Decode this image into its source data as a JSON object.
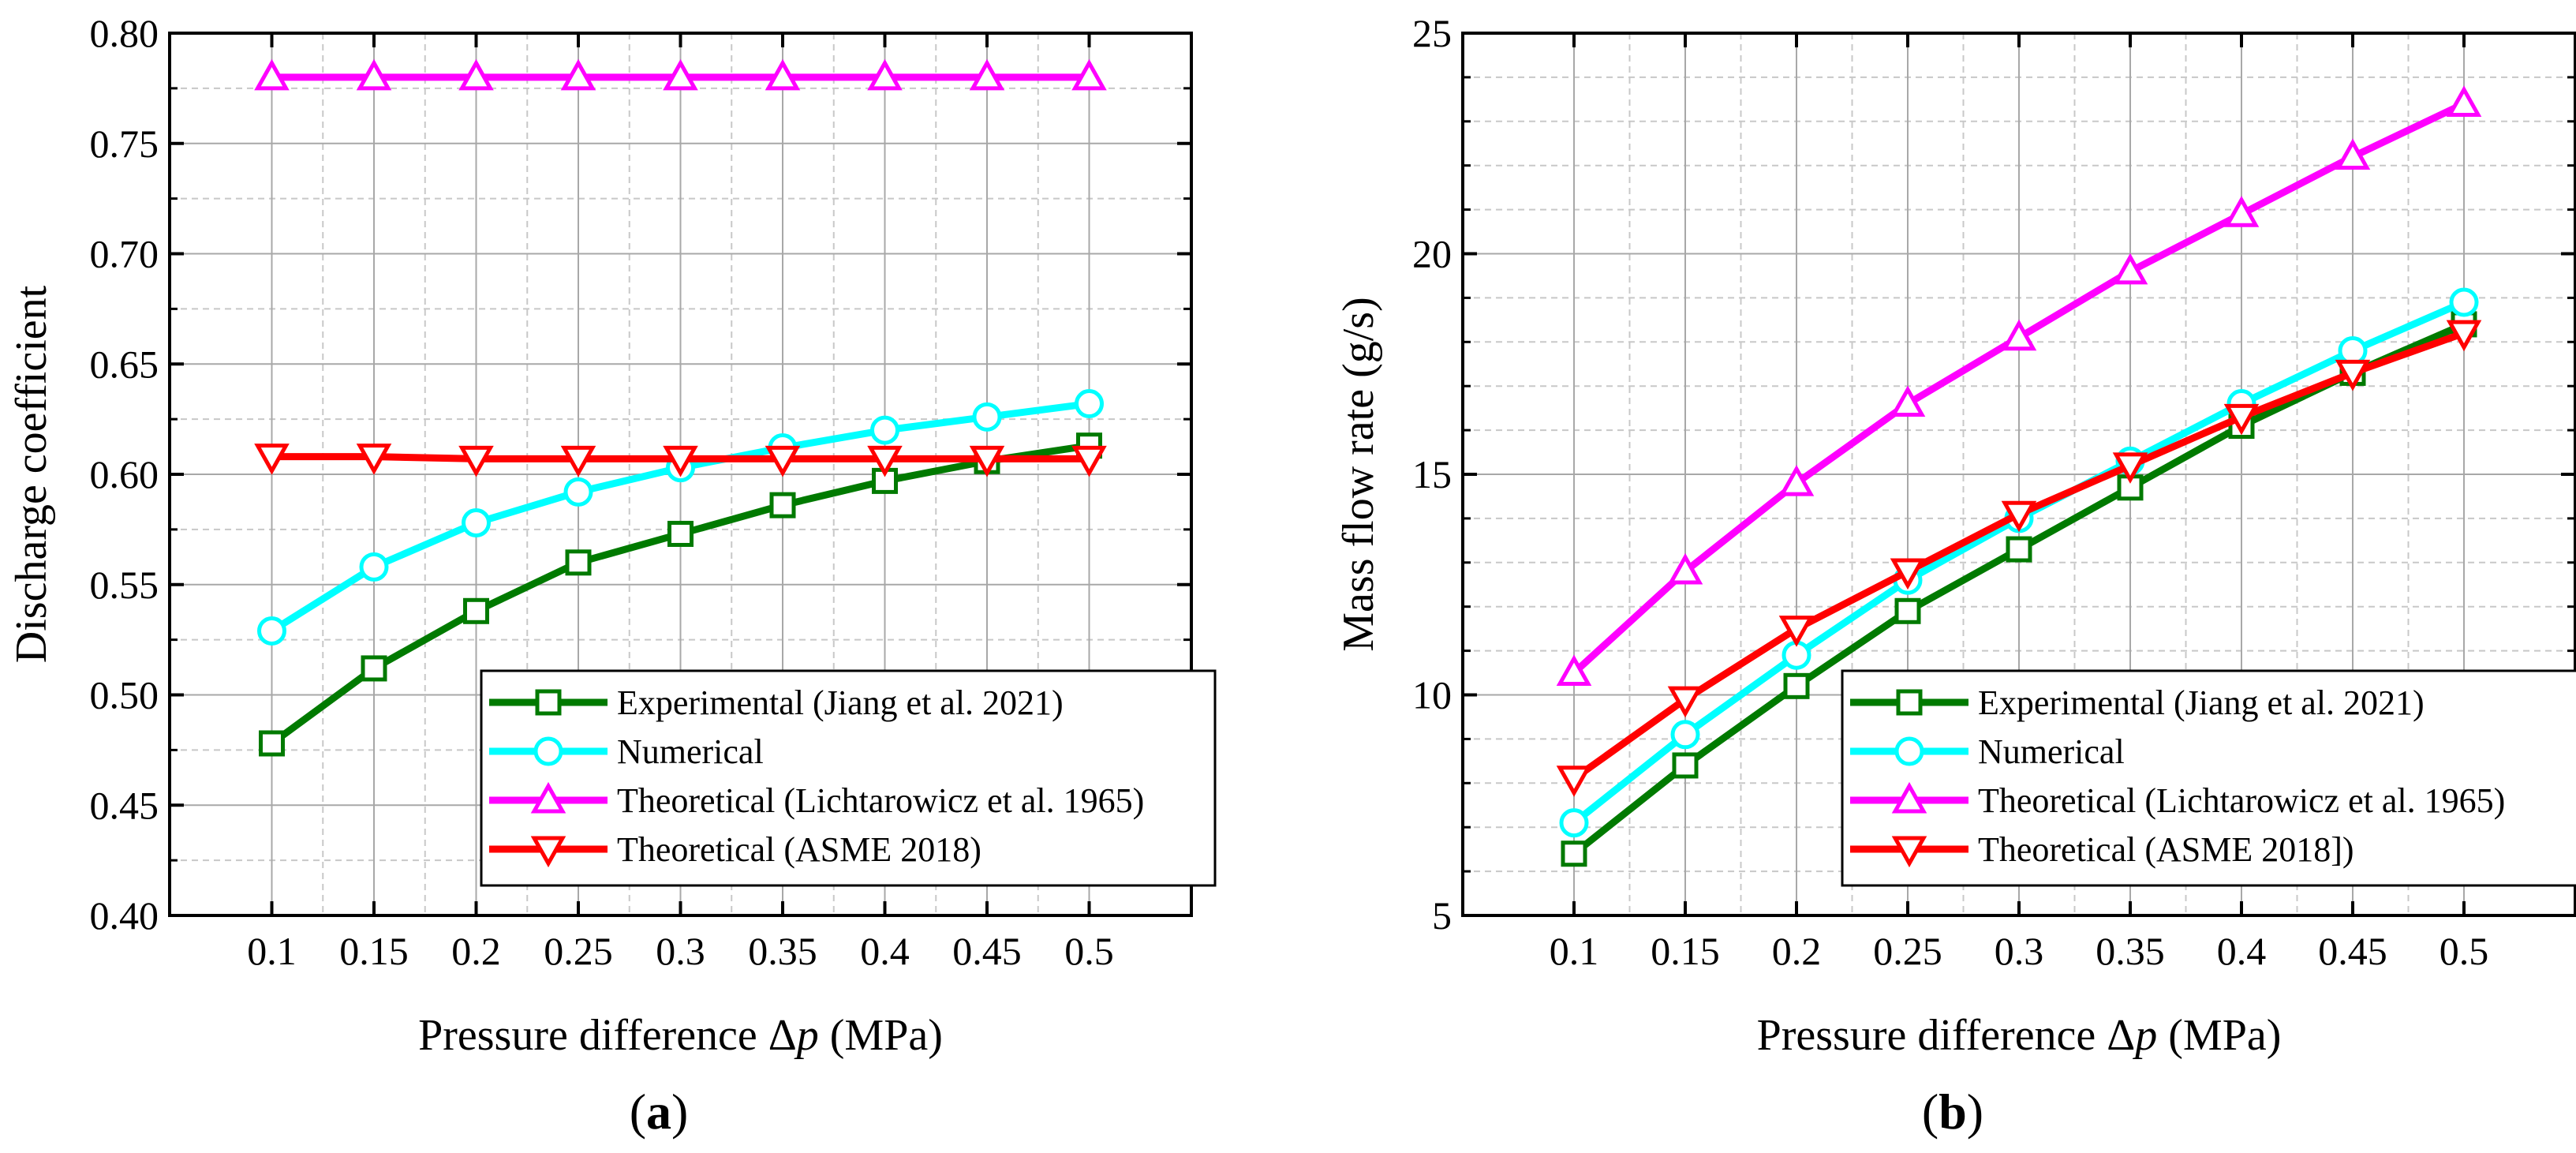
{
  "panels": [
    {
      "label": "a",
      "label_prefix": "(",
      "label_suffix": ")"
    },
    {
      "label": "b",
      "label_prefix": "(",
      "label_suffix": ")"
    }
  ],
  "chart_data": [
    {
      "type": "line",
      "panel": "a",
      "xlabel_prefix": "Pressure difference Δ",
      "xlabel_symbol": "p",
      "xlabel_suffix": " (MPa)",
      "ylabel": "Discharge coefficient",
      "x": [
        0.1,
        0.15,
        0.2,
        0.25,
        0.3,
        0.35,
        0.4,
        0.45,
        0.5
      ],
      "x_tick_labels": [
        "0.1",
        "0.15",
        "0.2",
        "0.25",
        "0.3",
        "0.35",
        "0.4",
        "0.45",
        "0.5"
      ],
      "xlim": [
        0.05,
        0.55
      ],
      "ylim": [
        0.4,
        0.8
      ],
      "y_ticks": [
        0.4,
        0.45,
        0.5,
        0.55,
        0.6,
        0.65,
        0.7,
        0.75,
        0.8
      ],
      "y_tick_labels": [
        "0.40",
        "0.45",
        "0.50",
        "0.55",
        "0.60",
        "0.65",
        "0.70",
        "0.75",
        "0.80"
      ],
      "y_minor_ticks": [
        0.425,
        0.475,
        0.525,
        0.575,
        0.625,
        0.675,
        0.725,
        0.775
      ],
      "grid": true,
      "legend_position": "bottom-right",
      "series": [
        {
          "name": "Experimental (Jiang et al. 2021)",
          "color": "#007a00",
          "marker": "square",
          "values": [
            0.478,
            0.512,
            0.538,
            0.56,
            0.573,
            0.586,
            0.597,
            0.606,
            0.613
          ]
        },
        {
          "name": "Numerical",
          "color": "#00ffff",
          "marker": "circle",
          "values": [
            0.529,
            0.558,
            0.578,
            0.592,
            0.603,
            0.612,
            0.62,
            0.626,
            0.632
          ]
        },
        {
          "name": "Theoretical (Lichtarowicz et al. 1965)",
          "color": "#ff00ff",
          "marker": "triangle-up",
          "values": [
            0.78,
            0.78,
            0.78,
            0.78,
            0.78,
            0.78,
            0.78,
            0.78,
            0.78
          ]
        },
        {
          "name": "Theoretical (ASME 2018)",
          "color": "#ff0000",
          "marker": "triangle-down",
          "values": [
            0.608,
            0.608,
            0.607,
            0.607,
            0.607,
            0.607,
            0.607,
            0.607,
            0.607
          ]
        }
      ]
    },
    {
      "type": "line",
      "panel": "b",
      "xlabel_prefix": "Pressure difference Δ",
      "xlabel_symbol": "p",
      "xlabel_suffix": " (MPa)",
      "ylabel": "Mass flow rate (g/s)",
      "x": [
        0.1,
        0.15,
        0.2,
        0.25,
        0.3,
        0.35,
        0.4,
        0.45,
        0.5
      ],
      "x_tick_labels": [
        "0.1",
        "0.15",
        "0.2",
        "0.25",
        "0.3",
        "0.35",
        "0.4",
        "0.45",
        "0.5"
      ],
      "xlim": [
        0.05,
        0.55
      ],
      "ylim": [
        5,
        25
      ],
      "y_ticks": [
        5,
        10,
        15,
        20,
        25
      ],
      "y_tick_labels": [
        "5",
        "10",
        "15",
        "20",
        "25"
      ],
      "y_minor_ticks": [
        6,
        7,
        8,
        9,
        11,
        12,
        13,
        14,
        16,
        17,
        18,
        19,
        21,
        22,
        23,
        24
      ],
      "grid": true,
      "legend_position": "bottom-right",
      "series": [
        {
          "name": "Experimental (Jiang et al. 2021)",
          "color": "#007a00",
          "marker": "square",
          "values": [
            6.4,
            8.4,
            10.2,
            11.9,
            13.3,
            14.7,
            16.1,
            17.3,
            18.4
          ]
        },
        {
          "name": "Numerical",
          "color": "#00ffff",
          "marker": "circle",
          "values": [
            7.1,
            9.1,
            10.9,
            12.6,
            14.0,
            15.3,
            16.6,
            17.8,
            18.9
          ]
        },
        {
          "name": "Theoretical (Lichtarowicz et al. 1965)",
          "color": "#ff00ff",
          "marker": "triangle-up",
          "values": [
            10.5,
            12.8,
            14.8,
            16.6,
            18.1,
            19.6,
            20.9,
            22.2,
            23.4
          ]
        },
        {
          "name": "Theoretical (ASME 2018])",
          "color": "#ff0000",
          "marker": "triangle-down",
          "values": [
            8.1,
            9.9,
            11.5,
            12.8,
            14.1,
            15.2,
            16.3,
            17.3,
            18.2
          ]
        }
      ]
    }
  ]
}
